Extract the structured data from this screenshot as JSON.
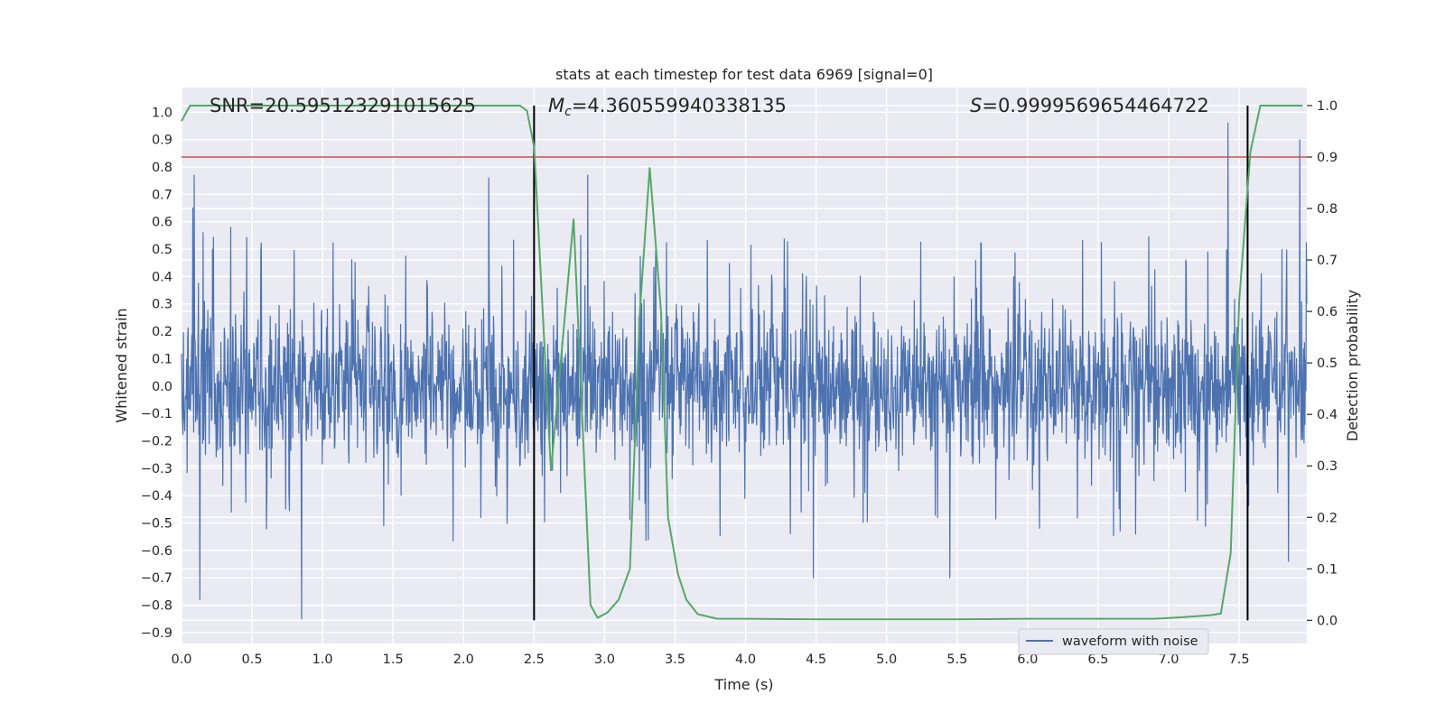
{
  "chart_data": {
    "type": "line",
    "title": "stats at each timestep for test data 6969 [signal=0]",
    "xlabel": "Time (s)",
    "ylabel": "Whitened strain",
    "y2label": "Detection probability",
    "xlim": [
      0.0,
      7.98
    ],
    "ylim": [
      -0.94,
      1.09
    ],
    "y2lim": [
      -0.045,
      1.035
    ],
    "grid": true,
    "x_ticks": [
      "0.0",
      "0.5",
      "1.0",
      "1.5",
      "2.0",
      "2.5",
      "3.0",
      "3.5",
      "4.0",
      "4.5",
      "5.0",
      "5.5",
      "6.0",
      "6.5",
      "7.0",
      "7.5"
    ],
    "y_ticks": [
      "1.0",
      "0.9",
      "0.8",
      "0.7",
      "0.6",
      "0.5",
      "0.4",
      "0.3",
      "0.2",
      "0.1",
      "0.0",
      "−0.1",
      "−0.2",
      "−0.3",
      "−0.4",
      "−0.5",
      "−0.6",
      "−0.7",
      "−0.8",
      "−0.9"
    ],
    "y2_ticks": [
      "1.0",
      "0.9",
      "0.8",
      "0.7",
      "0.6",
      "0.5",
      "0.4",
      "0.3",
      "0.2",
      "0.1",
      "0.0"
    ],
    "legend": {
      "label": "waveform with noise",
      "placement": "lower-right"
    },
    "series": [
      {
        "name": "waveform with noise",
        "axis": "left",
        "color": "#4c72b0",
        "description": "dense noise filling roughly -0.45..0.45, notable peaks",
        "peaks": [
          {
            "t": 0.08,
            "v": 0.65
          },
          {
            "t": 0.09,
            "v": 0.77
          },
          {
            "t": 0.13,
            "v": -0.78
          },
          {
            "t": 0.35,
            "v": 0.58
          },
          {
            "t": 0.85,
            "v": -0.85
          },
          {
            "t": 2.18,
            "v": 0.76
          },
          {
            "t": 2.88,
            "v": 0.77
          },
          {
            "t": 4.48,
            "v": -0.7
          },
          {
            "t": 5.45,
            "v": -0.7
          },
          {
            "t": 7.42,
            "v": 0.96
          },
          {
            "t": 7.93,
            "v": 0.9
          },
          {
            "t": 7.85,
            "v": -0.64
          }
        ]
      },
      {
        "name": "detection probability",
        "axis": "right",
        "color": "#55a868",
        "x": [
          0.0,
          0.06,
          0.2,
          1.0,
          2.0,
          2.3,
          2.4,
          2.45,
          2.5,
          2.62,
          2.78,
          2.9,
          2.95,
          3.02,
          3.1,
          3.18,
          3.25,
          3.32,
          3.4,
          3.45,
          3.52,
          3.58,
          3.66,
          3.8,
          4.0,
          4.5,
          5.0,
          5.5,
          6.0,
          6.5,
          6.9,
          7.1,
          7.3,
          7.37,
          7.44,
          7.5,
          7.58,
          7.65,
          7.72,
          7.95
        ],
        "values": [
          0.97,
          1.0,
          1.0,
          1.0,
          1.0,
          1.0,
          1.0,
          0.99,
          0.92,
          0.29,
          0.78,
          0.03,
          0.005,
          0.015,
          0.04,
          0.1,
          0.6,
          0.88,
          0.6,
          0.2,
          0.09,
          0.04,
          0.012,
          0.003,
          0.003,
          0.002,
          0.002,
          0.002,
          0.003,
          0.003,
          0.003,
          0.006,
          0.01,
          0.013,
          0.13,
          0.62,
          0.91,
          1.0,
          1.0,
          1.0
        ]
      }
    ],
    "hlines": [
      {
        "axis": "right",
        "value": 0.9,
        "color": "#c44e52"
      }
    ],
    "vlines": [
      {
        "x": 2.5,
        "color": "#000000"
      },
      {
        "x": 7.56,
        "color": "#000000"
      }
    ],
    "annotations": [
      {
        "name": "snr",
        "text": "SNR=20.595123291015625"
      },
      {
        "name": "mc",
        "symbol": "M",
        "subscript": "c",
        "text": "=4.360559940338135"
      },
      {
        "name": "s",
        "symbol": "S",
        "text": "=0.9999569654464722"
      }
    ]
  }
}
